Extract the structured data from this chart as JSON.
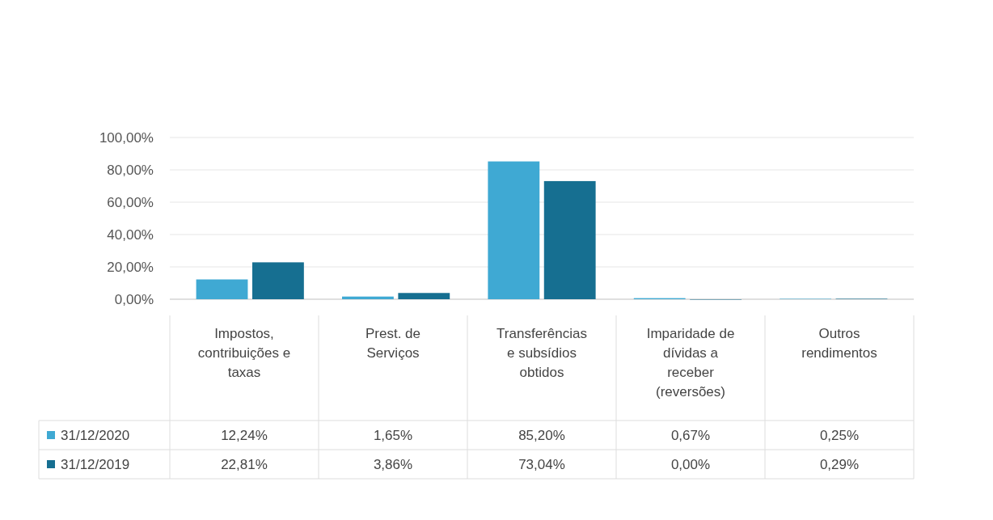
{
  "chart_data": {
    "type": "bar",
    "categories": [
      "Impostos, contribuições e taxas",
      "Prest. de Serviços",
      "Transferências e subsídios obtidos",
      "Imparidade de dívidas a receber (reversões)",
      "Outros rendimentos"
    ],
    "series": [
      {
        "name": "31/12/2020",
        "color": "#3fa9d3",
        "values": [
          12.24,
          1.65,
          85.2,
          0.67,
          0.25
        ],
        "value_labels": [
          "12,24%",
          "1,65%",
          "85,20%",
          "0,67%",
          "0,25%"
        ]
      },
      {
        "name": "31/12/2019",
        "color": "#166f91",
        "values": [
          22.81,
          3.86,
          73.04,
          0,
          0.29
        ],
        "value_labels": [
          "22,81%",
          "3,86%",
          "73,04%",
          "0,00%",
          "0,29%"
        ]
      }
    ],
    "ylim": [
      0,
      100
    ],
    "yticks": [
      {
        "value": 0,
        "label": "0,00%"
      },
      {
        "value": 20,
        "label": "20,00%"
      },
      {
        "value": 40,
        "label": "40,00%"
      },
      {
        "value": 60,
        "label": "60,00%"
      },
      {
        "value": 80,
        "label": "80,00%"
      },
      {
        "value": 100,
        "label": "100,00%"
      }
    ],
    "grid": true,
    "legend": "bottom left"
  }
}
